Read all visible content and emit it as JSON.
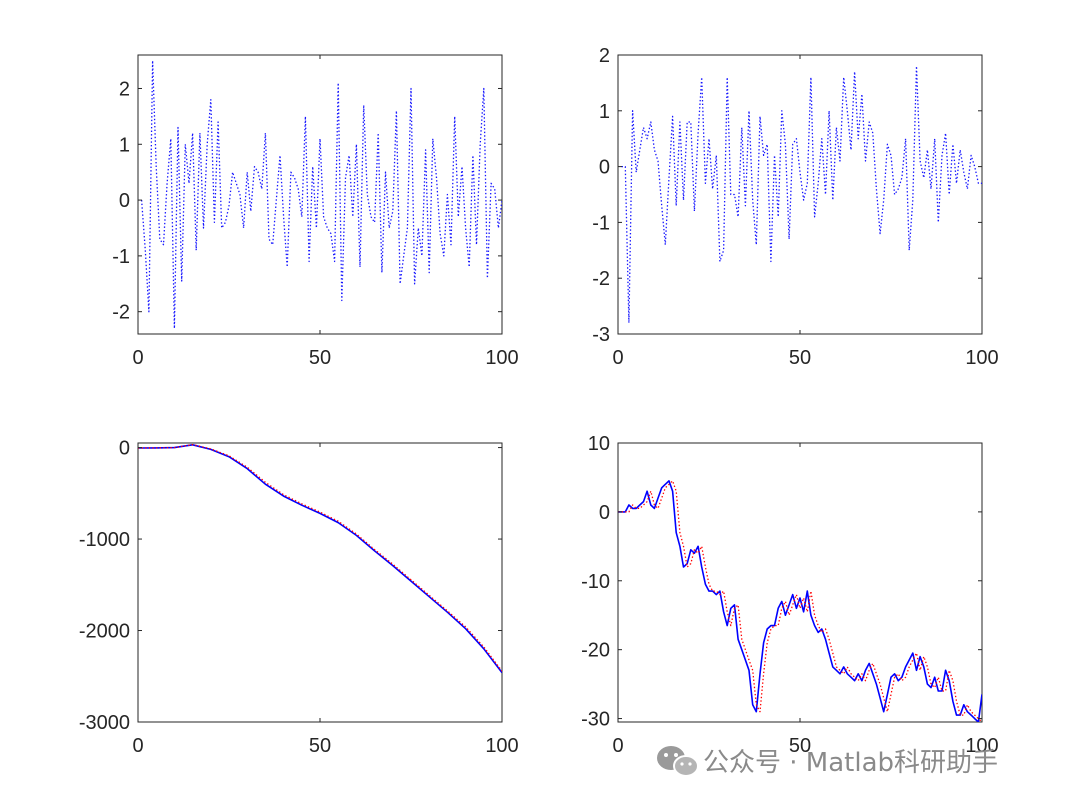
{
  "chart_data": [
    {
      "type": "line",
      "xlim": [
        0,
        100
      ],
      "ylim": [
        -2.4,
        2.6
      ],
      "xticks": [
        0,
        50,
        100
      ],
      "yticks": [
        -2,
        -1,
        0,
        1,
        2
      ],
      "grid": false,
      "series": [
        {
          "style": "dotted",
          "color": "#1515ff",
          "x": [
            1,
            2,
            3,
            4,
            5,
            6,
            7,
            8,
            9,
            10,
            11,
            12,
            13,
            14,
            15,
            16,
            17,
            18,
            19,
            20,
            21,
            22,
            23,
            24,
            25,
            26,
            27,
            28,
            29,
            30,
            31,
            32,
            33,
            34,
            35,
            36,
            37,
            38,
            39,
            40,
            41,
            42,
            43,
            44,
            45,
            46,
            47,
            48,
            49,
            50,
            51,
            52,
            53,
            54,
            55,
            56,
            57,
            58,
            59,
            60,
            61,
            62,
            63,
            64,
            65,
            66,
            67,
            68,
            69,
            70,
            71,
            72,
            73,
            74,
            75,
            76,
            77,
            78,
            79,
            80,
            81,
            82,
            83,
            84,
            85,
            86,
            87,
            88,
            89,
            90,
            91,
            92,
            93,
            94,
            95,
            96,
            97,
            98,
            99,
            100
          ],
          "values": [
            0.0,
            -0.9,
            -2.0,
            2.5,
            0.6,
            -0.7,
            -0.8,
            0.3,
            1.1,
            -2.3,
            1.3,
            -1.45,
            1.0,
            0.3,
            1.2,
            -0.9,
            1.2,
            -0.5,
            1.0,
            1.8,
            -0.4,
            1.4,
            -0.5,
            -0.4,
            -0.1,
            0.5,
            0.3,
            0.1,
            -0.5,
            0.5,
            -0.2,
            0.6,
            0.5,
            0.2,
            1.2,
            -0.7,
            -0.8,
            0.0,
            0.8,
            -0.3,
            -1.2,
            0.5,
            0.4,
            0.2,
            -0.3,
            1.5,
            -1.1,
            0.6,
            -0.5,
            1.1,
            -0.3,
            -0.5,
            -0.6,
            -1.1,
            2.1,
            -1.8,
            0.4,
            0.8,
            -0.3,
            1.0,
            -1.2,
            1.7,
            0.1,
            -0.3,
            -0.4,
            1.2,
            -1.3,
            0.5,
            -0.5,
            -0.2,
            1.6,
            -1.5,
            -1.0,
            -0.5,
            2.0,
            -1.5,
            -0.5,
            -1.0,
            0.9,
            -1.3,
            1.1,
            0.4,
            -0.6,
            -1.0,
            0.1,
            -0.8,
            1.5,
            -0.3,
            0.6,
            -0.5,
            -1.2,
            0.8,
            -0.8,
            1.0,
            2.0,
            -1.4,
            0.3,
            0.2,
            -0.5,
            0.0
          ]
        }
      ]
    },
    {
      "type": "line",
      "xlim": [
        0,
        100
      ],
      "ylim": [
        -3,
        2
      ],
      "xticks": [
        0,
        50,
        100
      ],
      "yticks": [
        -3,
        -2,
        -1,
        0,
        1,
        2
      ],
      "grid": false,
      "series": [
        {
          "style": "dotted",
          "color": "#1515ff",
          "x": [
            1,
            2,
            3,
            4,
            5,
            6,
            7,
            8,
            9,
            10,
            11,
            12,
            13,
            14,
            15,
            16,
            17,
            18,
            19,
            20,
            21,
            22,
            23,
            24,
            25,
            26,
            27,
            28,
            29,
            30,
            31,
            32,
            33,
            34,
            35,
            36,
            37,
            38,
            39,
            40,
            41,
            42,
            43,
            44,
            45,
            46,
            47,
            48,
            49,
            50,
            51,
            52,
            53,
            54,
            55,
            56,
            57,
            58,
            59,
            60,
            61,
            62,
            63,
            64,
            65,
            66,
            67,
            68,
            69,
            70,
            71,
            72,
            73,
            74,
            75,
            76,
            77,
            78,
            79,
            80,
            81,
            82,
            83,
            84,
            85,
            86,
            87,
            88,
            89,
            90,
            91,
            92,
            93,
            94,
            95,
            96,
            97,
            98,
            99,
            100
          ],
          "values": [
            0.0,
            0.0,
            -2.8,
            1.0,
            -0.1,
            0.3,
            0.7,
            0.5,
            0.8,
            0.3,
            0.1,
            -0.7,
            -1.4,
            -0.2,
            0.9,
            -0.7,
            0.8,
            -0.6,
            0.8,
            0.8,
            -0.8,
            0.6,
            1.6,
            -0.3,
            0.5,
            -0.4,
            0.2,
            -1.7,
            -1.5,
            1.6,
            -0.5,
            -0.5,
            -0.9,
            0.7,
            -0.7,
            1.0,
            -0.6,
            -1.4,
            0.9,
            0.2,
            0.4,
            -1.7,
            0.2,
            -0.9,
            1.0,
            0.4,
            -1.3,
            0.4,
            0.5,
            -0.1,
            -0.6,
            -0.3,
            1.6,
            -0.9,
            -0.3,
            0.5,
            -0.5,
            1.0,
            -0.6,
            0.7,
            0.1,
            1.6,
            1.0,
            0.3,
            1.7,
            0.5,
            1.3,
            0.1,
            0.8,
            0.6,
            -0.4,
            -1.2,
            -0.6,
            0.4,
            0.2,
            -0.5,
            -0.4,
            -0.2,
            0.5,
            -1.5,
            -0.6,
            1.8,
            0.1,
            -0.2,
            0.3,
            -0.4,
            0.5,
            -1.0,
            0.2,
            0.6,
            -0.5,
            0.4,
            -0.3,
            0.3,
            -0.1,
            -0.4,
            0.2,
            0.0,
            -0.3,
            -0.3
          ]
        }
      ]
    },
    {
      "type": "line",
      "xlim": [
        0,
        100
      ],
      "ylim": [
        -3000,
        50
      ],
      "xticks": [
        0,
        50,
        100
      ],
      "yticks": [
        -3000,
        -2000,
        -1000,
        0
      ],
      "grid": false,
      "series": [
        {
          "style": "solid",
          "color": "#0000ff",
          "x": [
            0,
            5,
            10,
            15,
            20,
            25,
            30,
            35,
            40,
            45,
            50,
            55,
            60,
            65,
            70,
            75,
            80,
            85,
            90,
            95,
            100
          ],
          "values": [
            -5,
            -4,
            0,
            30,
            -20,
            -100,
            -230,
            -400,
            -530,
            -630,
            -720,
            -820,
            -960,
            -1130,
            -1290,
            -1460,
            -1630,
            -1800,
            -1980,
            -2200,
            -2460
          ]
        },
        {
          "style": "dotted",
          "color": "#ff0000",
          "x": [
            0,
            5,
            10,
            15,
            20,
            25,
            30,
            35,
            40,
            45,
            50,
            55,
            60,
            65,
            70,
            75,
            80,
            85,
            90,
            95,
            100
          ],
          "values": [
            -5,
            -4,
            0,
            32,
            -15,
            -90,
            -215,
            -380,
            -515,
            -615,
            -705,
            -805,
            -945,
            -1115,
            -1275,
            -1445,
            -1615,
            -1785,
            -1960,
            -2180,
            -2445
          ]
        }
      ]
    },
    {
      "type": "line",
      "xlim": [
        0,
        100
      ],
      "ylim": [
        -30.5,
        10
      ],
      "xticks": [
        0,
        50,
        100
      ],
      "yticks": [
        -30,
        -20,
        -10,
        0,
        10
      ],
      "grid": false,
      "series": [
        {
          "style": "solid",
          "color": "#0000ff",
          "x": [
            0,
            2,
            3,
            4,
            5,
            6,
            7,
            8,
            9,
            10,
            11,
            12,
            13,
            14,
            15,
            16,
            17,
            18,
            19,
            20,
            21,
            22,
            23,
            24,
            25,
            26,
            27,
            28,
            29,
            30,
            31,
            32,
            33,
            34,
            35,
            36,
            37,
            38,
            39,
            40,
            41,
            42,
            43,
            44,
            45,
            46,
            47,
            48,
            49,
            50,
            51,
            52,
            53,
            54,
            55,
            56,
            57,
            58,
            59,
            60,
            61,
            62,
            63,
            64,
            65,
            66,
            67,
            68,
            69,
            70,
            71,
            72,
            73,
            74,
            75,
            76,
            77,
            78,
            79,
            80,
            81,
            82,
            83,
            84,
            85,
            86,
            87,
            88,
            89,
            90,
            91,
            92,
            93,
            94,
            95,
            96,
            97,
            98,
            99,
            100
          ],
          "values": [
            0,
            0,
            1,
            0.5,
            0.5,
            1,
            1.5,
            3,
            1,
            0.5,
            2,
            3.5,
            4,
            4.5,
            3,
            -3,
            -5,
            -8,
            -7.5,
            -5.5,
            -6,
            -5,
            -8,
            -10.5,
            -11.5,
            -11.5,
            -12,
            -11.5,
            -14.5,
            -16.5,
            -14,
            -13.5,
            -18.5,
            -20,
            -21.5,
            -23,
            -28,
            -29,
            -23.5,
            -19,
            -17,
            -16.5,
            -16.5,
            -14,
            -13,
            -15,
            -13.5,
            -12,
            -14,
            -12.5,
            -14.5,
            -11.5,
            -15,
            -16.5,
            -17.5,
            -17,
            -18.5,
            -20.5,
            -22.5,
            -23,
            -23.5,
            -22.5,
            -23.5,
            -24,
            -24.5,
            -23.5,
            -24.5,
            -23,
            -22,
            -23.5,
            -25,
            -27,
            -29,
            -26.5,
            -24,
            -23.5,
            -24.5,
            -24,
            -22.5,
            -21.5,
            -20.5,
            -23,
            -21,
            -22.5,
            -25,
            -25.5,
            -24,
            -26,
            -26,
            -23,
            -24.5,
            -27.5,
            -29.5,
            -29.5,
            -28,
            -29,
            -29.5,
            -30,
            -30.5,
            -26.5
          ]
        },
        {
          "style": "dotted",
          "color": "#ff0000",
          "x": [
            0,
            2,
            3,
            4,
            5,
            6,
            7,
            8,
            9,
            10,
            11,
            12,
            13,
            14,
            15,
            16,
            17,
            18,
            19,
            20,
            21,
            22,
            23,
            24,
            25,
            26,
            27,
            28,
            29,
            30,
            31,
            32,
            33,
            34,
            35,
            36,
            37,
            38,
            39,
            40,
            41,
            42,
            43,
            44,
            45,
            46,
            47,
            48,
            49,
            50,
            51,
            52,
            53,
            54,
            55,
            56,
            57,
            58,
            59,
            60,
            61,
            62,
            63,
            64,
            65,
            66,
            67,
            68,
            69,
            70,
            71,
            72,
            73,
            74,
            75,
            76,
            77,
            78,
            79,
            80,
            81,
            82,
            83,
            84,
            85,
            86,
            87,
            88,
            89,
            90,
            91,
            92,
            93,
            94,
            95,
            96,
            97,
            98,
            99,
            100
          ],
          "values": [
            0,
            0,
            0,
            1,
            0.5,
            0.5,
            1,
            1.5,
            3,
            1,
            0.5,
            2,
            3.5,
            4,
            4.5,
            3,
            -3,
            -5,
            -8,
            -7.5,
            -5.5,
            -6,
            -5,
            -8,
            -10.5,
            -11.5,
            -11.5,
            -12,
            -11.5,
            -14.5,
            -16.5,
            -14,
            -13.5,
            -18.5,
            -20,
            -21.5,
            -23,
            -28,
            -29,
            -23.5,
            -19,
            -17,
            -16.5,
            -16.5,
            -14,
            -13,
            -15,
            -13.5,
            -12,
            -14,
            -12.5,
            -14.5,
            -11.5,
            -15,
            -16.5,
            -17.5,
            -17,
            -18.5,
            -20.5,
            -22.5,
            -23,
            -23.5,
            -22.5,
            -23.5,
            -24,
            -24.5,
            -23.5,
            -24.5,
            -23,
            -22,
            -23.5,
            -25,
            -27,
            -29,
            -26.5,
            -24,
            -23.5,
            -24.5,
            -24,
            -22.5,
            -21.5,
            -20.5,
            -23,
            -21,
            -22.5,
            -25,
            -25.5,
            -24,
            -26,
            -26,
            -23,
            -24.5,
            -27.5,
            -29.5,
            -29.5,
            -28,
            -29,
            -29.5,
            -30,
            -30.5
          ]
        }
      ]
    }
  ],
  "watermark": {
    "icon": "wechat-icon",
    "text": "公众号 · Matlab科研助手"
  }
}
